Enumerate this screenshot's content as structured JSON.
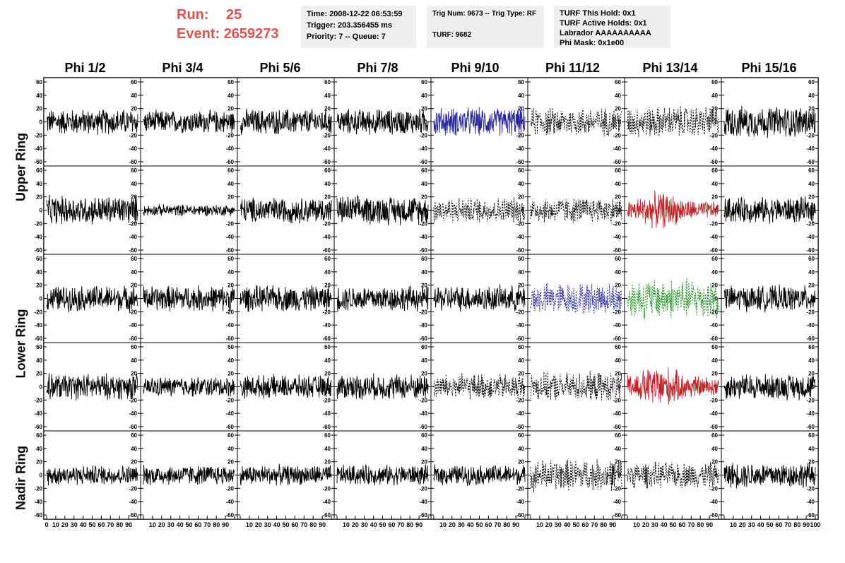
{
  "header": {
    "run_label": "Run:",
    "run_value": "25",
    "event_label": "Event:",
    "event_value": "2659273",
    "box1": [
      "Time: 2008-12-22 06:53:59",
      "Trigger: 203.356455 ms",
      "Priority: 7 -- Queue: 7"
    ],
    "box2": [
      "Trig Num: 9673 -- Trig Type: RF",
      "",
      "TURF: 9682"
    ],
    "box3": [
      "TURF This Hold: 0x1",
      "TURF Active Holds: 0x1",
      "Labrador AAAAAAAAAA",
      "Phi Mask: 0x1e00"
    ]
  },
  "columns": [
    "Phi 1/2",
    "Phi 3/4",
    "Phi 5/6",
    "Phi 7/8",
    "Phi 9/10",
    "Phi 11/12",
    "Phi 13/14",
    "Phi 15/16"
  ],
  "rows": [
    "Upper Ring",
    "Lower Ring",
    "Nadir Ring"
  ],
  "chart_data": {
    "type": "line",
    "layout": "grid 5x8 waveform panels",
    "ylim": [
      -60,
      60
    ],
    "xlim": [
      0,
      100
    ],
    "y_ticks": [
      60,
      40,
      20,
      0,
      -20,
      -40,
      -60
    ],
    "x_tick_labels": [
      "0",
      "10",
      "20",
      "30",
      "40",
      "50",
      "60",
      "70",
      "80",
      "90",
      "100"
    ],
    "colors": {
      "normal": "#000000",
      "blue": "#2b2b9e",
      "red": "#c0262b",
      "green": "#1a8f1a"
    },
    "panels": [
      [
        "solid",
        "solid",
        "solid",
        "solid",
        "blue",
        "dashed",
        "dashed",
        "solid"
      ],
      [
        "solid",
        "solid",
        "solid",
        "solid",
        "dashed",
        "dashed",
        "red",
        "solid"
      ],
      [
        "solid",
        "solid",
        "solid",
        "solid",
        "solid",
        "blue-dashed",
        "green-dashed",
        "solid"
      ],
      [
        "solid",
        "solid",
        "solid",
        "solid",
        "dashed",
        "dashed",
        "red",
        "solid"
      ],
      [
        "solid",
        "solid",
        "solid",
        "solid",
        "solid",
        "dashed",
        "dashed",
        "solid"
      ]
    ],
    "amplitudes": [
      [
        18,
        16,
        18,
        18,
        20,
        20,
        22,
        22
      ],
      [
        20,
        8,
        18,
        20,
        18,
        18,
        22,
        18
      ],
      [
        18,
        18,
        18,
        18,
        18,
        22,
        28,
        18
      ],
      [
        18,
        14,
        16,
        18,
        18,
        20,
        26,
        18
      ],
      [
        14,
        14,
        14,
        14,
        14,
        22,
        18,
        18
      ]
    ]
  }
}
